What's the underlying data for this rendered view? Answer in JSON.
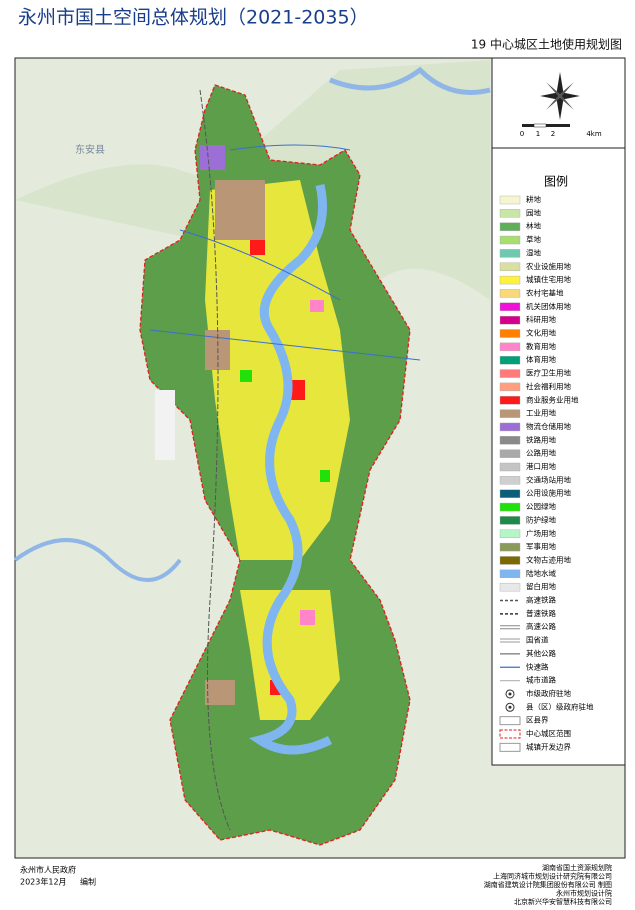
{
  "header": {
    "title": "永州市国土空间总体规划（2021-2035）",
    "subtitle": "19 中心城区土地使用规划图"
  },
  "map": {
    "labels": [
      "东安县"
    ]
  },
  "scale": {
    "labels": [
      "0",
      "1",
      "2",
      "4km"
    ]
  },
  "legend": {
    "title": "图例",
    "items": [
      {
        "name": "耕地",
        "color": "#f5f5d0",
        "kind": "fill"
      },
      {
        "name": "园地",
        "color": "#c9e6a8",
        "kind": "fill"
      },
      {
        "name": "林地",
        "color": "#5fae5a",
        "kind": "fill"
      },
      {
        "name": "草地",
        "color": "#a9dd6d",
        "kind": "fill"
      },
      {
        "name": "湿地",
        "color": "#6fc9b0",
        "kind": "fill"
      },
      {
        "name": "农业设施用地",
        "color": "#d9df9d",
        "kind": "fill"
      },
      {
        "name": "城镇住宅用地",
        "color": "#fff23a",
        "kind": "fill"
      },
      {
        "name": "农村宅基地",
        "color": "#f7d87a",
        "kind": "fill"
      },
      {
        "name": "机关团体用地",
        "color": "#f012d8",
        "kind": "fill"
      },
      {
        "name": "科研用地",
        "color": "#d4008c",
        "kind": "fill"
      },
      {
        "name": "文化用地",
        "color": "#ff7f00",
        "kind": "fill"
      },
      {
        "name": "教育用地",
        "color": "#ff85c8",
        "kind": "fill"
      },
      {
        "name": "体育用地",
        "color": "#00a07a",
        "kind": "fill"
      },
      {
        "name": "医疗卫生用地",
        "color": "#ff7a7a",
        "kind": "fill"
      },
      {
        "name": "社会福利用地",
        "color": "#ff9f80",
        "kind": "fill"
      },
      {
        "name": "商业服务业用地",
        "color": "#ff1a1a",
        "kind": "fill"
      },
      {
        "name": "工业用地",
        "color": "#b99675",
        "kind": "fill"
      },
      {
        "name": "物流仓储用地",
        "color": "#9b6fd6",
        "kind": "fill"
      },
      {
        "name": "铁路用地",
        "color": "#8a8a8a",
        "kind": "fill"
      },
      {
        "name": "公路用地",
        "color": "#a9a9a9",
        "kind": "fill"
      },
      {
        "name": "港口用地",
        "color": "#c4c4c4",
        "kind": "fill"
      },
      {
        "name": "交通场站用地",
        "color": "#cfcfcf",
        "kind": "fill"
      },
      {
        "name": "公用设施用地",
        "color": "#0b5e7a",
        "kind": "fill"
      },
      {
        "name": "公园绿地",
        "color": "#22e00a",
        "kind": "fill"
      },
      {
        "name": "防护绿地",
        "color": "#1e8a4a",
        "kind": "fill"
      },
      {
        "name": "广场用地",
        "color": "#b6f5c8",
        "kind": "fill"
      },
      {
        "name": "军事用地",
        "color": "#8a9a5a",
        "kind": "fill"
      },
      {
        "name": "文物古迹用地",
        "color": "#7a6a00",
        "kind": "fill"
      },
      {
        "name": "陆地水域",
        "color": "#7fb6f0",
        "kind": "fill"
      },
      {
        "name": "留白用地",
        "color": "#e8e8e8",
        "kind": "fill"
      },
      {
        "name": "高速铁路",
        "color": "#555555",
        "kind": "dash"
      },
      {
        "name": "普速铁路",
        "color": "#333333",
        "kind": "dash"
      },
      {
        "name": "高速公路",
        "color": "#888888",
        "kind": "double"
      },
      {
        "name": "国省道",
        "color": "#999999",
        "kind": "double"
      },
      {
        "name": "其他公路",
        "color": "#777777",
        "kind": "line"
      },
      {
        "name": "快速路",
        "color": "#3a6fd0",
        "kind": "line"
      },
      {
        "name": "城市道路",
        "color": "#bbbbbb",
        "kind": "line"
      },
      {
        "name": "市级政府驻地",
        "color": "#333333",
        "kind": "symbol"
      },
      {
        "name": "县（区）级政府驻地",
        "color": "#333333",
        "kind": "symbol"
      },
      {
        "name": "区县界",
        "color": "#999999",
        "kind": "box"
      },
      {
        "name": "中心城区范围",
        "color": "#e02020",
        "kind": "dashbox"
      },
      {
        "name": "城镇开发边界",
        "color": "#999999",
        "kind": "box"
      }
    ]
  },
  "footer": {
    "publisher": "永州市人民政府",
    "date": "2023年12月",
    "action": "编制",
    "credits": [
      "湖南省国土资源规划院",
      "上海同济城市规划设计研究院有限公司",
      "湖南省建筑设计院集团股份有限公司 制图",
      "永州市规划设计院",
      "北京新兴华安智慧科技有限公司"
    ]
  }
}
